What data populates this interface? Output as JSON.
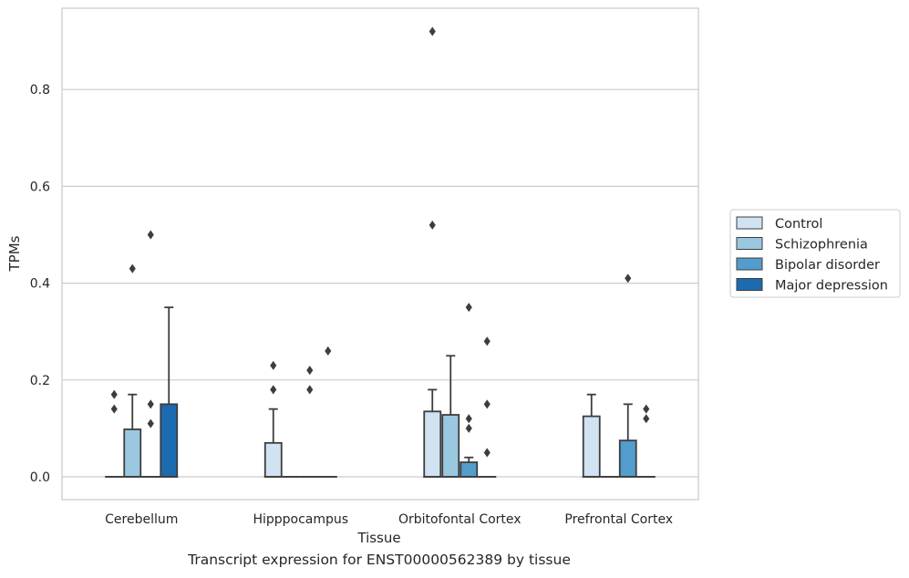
{
  "caption": "Transcript expression for ENST00000562389 by tissue",
  "chart_data": {
    "type": "box",
    "xlabel": "Tissue",
    "ylabel": "TPMs",
    "ylim": [
      -0.045,
      0.965
    ],
    "yticks": [
      "0.0",
      "0.2",
      "0.4",
      "0.6",
      "0.8"
    ],
    "grid": true,
    "legend_position": "right",
    "categories": [
      "Cerebellum",
      "Hipppocampus",
      "Orbitofontal Cortex",
      "Prefrontal Cortex"
    ],
    "series": [
      {
        "name": "Control",
        "color": "#d1e2f2",
        "boxes": [
          {
            "q1": 0,
            "median": 0,
            "q3": 0,
            "whisker_low": 0,
            "whisker_high": 0,
            "outliers": [
              0.14,
              0.17
            ]
          },
          {
            "q1": 0,
            "median": 0,
            "q3": 0.07,
            "whisker_low": 0,
            "whisker_high": 0.14,
            "outliers": [
              0.18,
              0.23
            ]
          },
          {
            "q1": 0,
            "median": 0,
            "q3": 0.135,
            "whisker_low": 0,
            "whisker_high": 0.18,
            "outliers": [
              0.52,
              0.92
            ]
          },
          {
            "q1": 0,
            "median": 0,
            "q3": 0.125,
            "whisker_low": 0,
            "whisker_high": 0.17,
            "outliers": []
          }
        ]
      },
      {
        "name": "Schizophrenia",
        "color": "#9ac8e0",
        "boxes": [
          {
            "q1": 0,
            "median": 0,
            "q3": 0.098,
            "whisker_low": 0,
            "whisker_high": 0.17,
            "outliers": [
              0.43
            ]
          },
          {
            "q1": 0,
            "median": 0,
            "q3": 0,
            "whisker_low": 0,
            "whisker_high": 0,
            "outliers": []
          },
          {
            "q1": 0,
            "median": 0,
            "q3": 0.128,
            "whisker_low": 0,
            "whisker_high": 0.25,
            "outliers": []
          },
          {
            "q1": 0,
            "median": 0,
            "q3": 0,
            "whisker_low": 0,
            "whisker_high": 0,
            "outliers": []
          }
        ]
      },
      {
        "name": "Bipolar disorder",
        "color": "#529dcc",
        "boxes": [
          {
            "q1": 0,
            "median": 0,
            "q3": 0,
            "whisker_low": 0,
            "whisker_high": 0,
            "outliers": [
              0.11,
              0.15,
              0.5
            ]
          },
          {
            "q1": 0,
            "median": 0,
            "q3": 0,
            "whisker_low": 0,
            "whisker_high": 0,
            "outliers": [
              0.18,
              0.22
            ]
          },
          {
            "q1": 0,
            "median": 0,
            "q3": 0.03,
            "whisker_low": 0,
            "whisker_high": 0.04,
            "outliers": [
              0.1,
              0.12,
              0.35
            ]
          },
          {
            "q1": 0,
            "median": 0,
            "q3": 0.075,
            "whisker_low": 0,
            "whisker_high": 0.15,
            "outliers": [
              0.41
            ]
          }
        ]
      },
      {
        "name": "Major depression",
        "color": "#1c6aaf",
        "boxes": [
          {
            "q1": 0,
            "median": 0,
            "q3": 0.15,
            "whisker_low": 0,
            "whisker_high": 0.35,
            "outliers": []
          },
          {
            "q1": 0,
            "median": 0,
            "q3": 0,
            "whisker_low": 0,
            "whisker_high": 0,
            "outliers": [
              0.26
            ]
          },
          {
            "q1": 0,
            "median": 0,
            "q3": 0,
            "whisker_low": 0,
            "whisker_high": 0,
            "outliers": [
              0.05,
              0.15,
              0.28
            ]
          },
          {
            "q1": 0,
            "median": 0,
            "q3": 0,
            "whisker_low": 0,
            "whisker_high": 0,
            "outliers": [
              0.12,
              0.14
            ]
          }
        ]
      }
    ]
  }
}
